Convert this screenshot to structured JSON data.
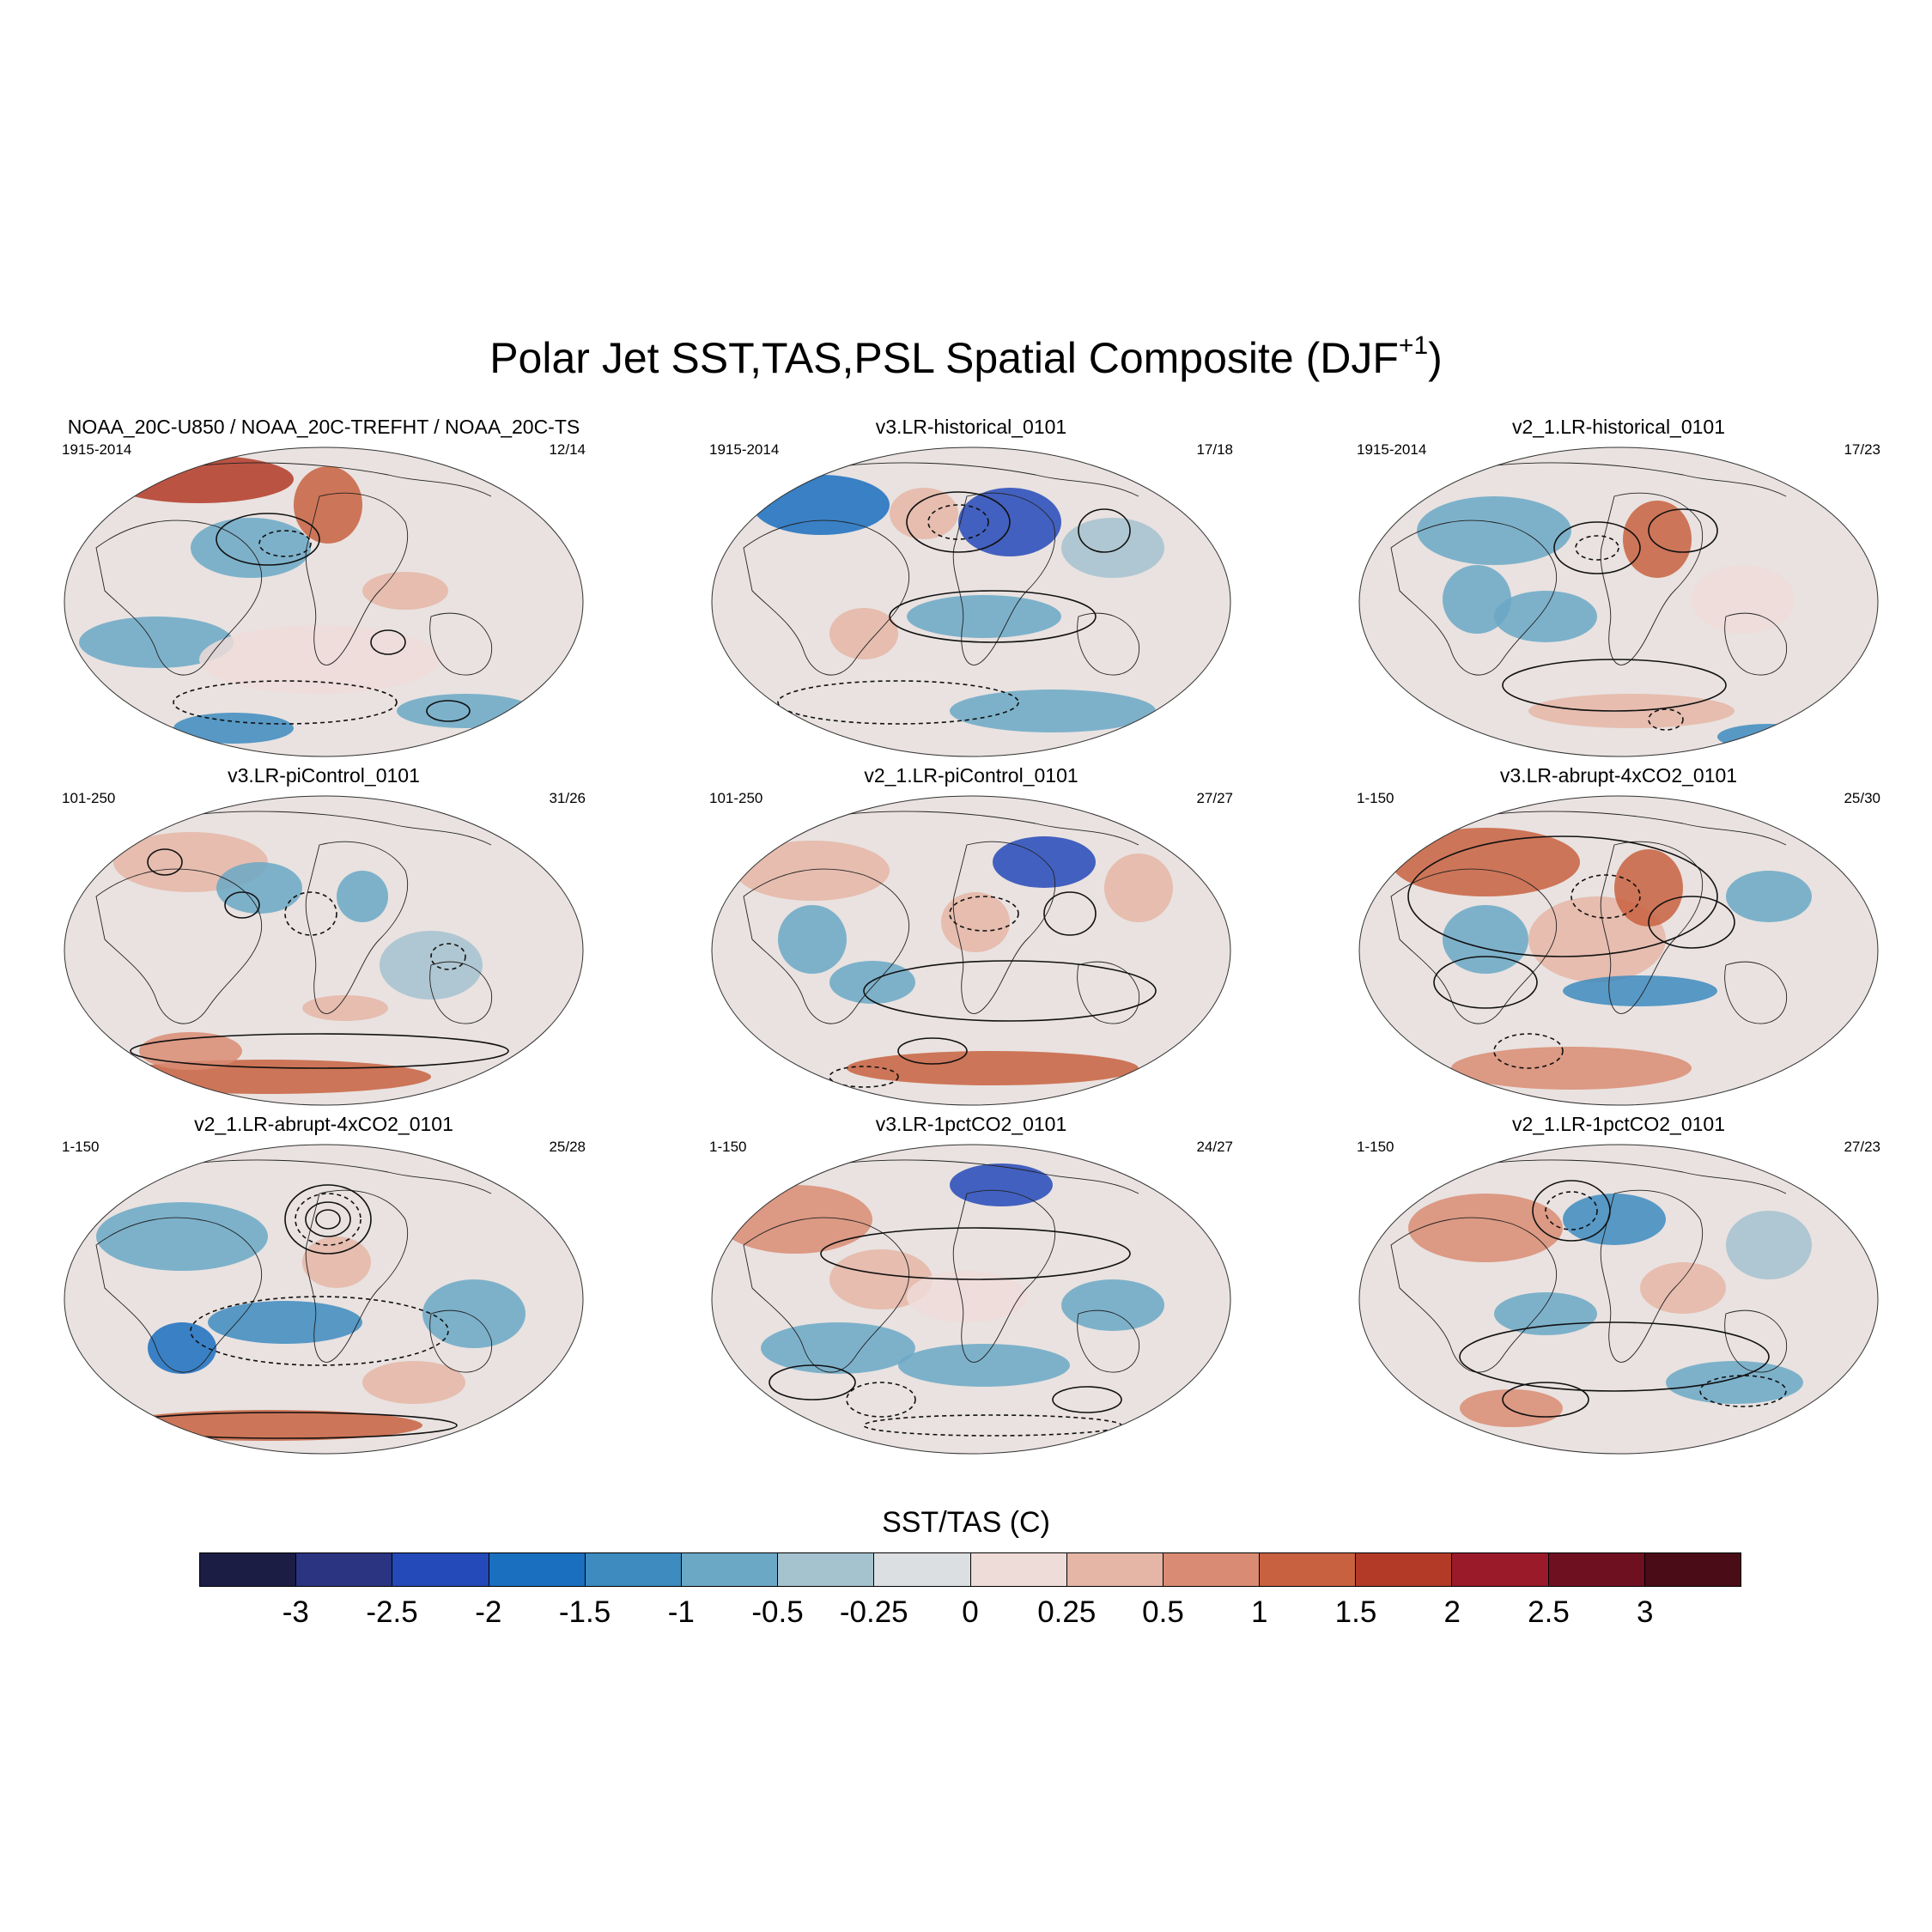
{
  "title": {
    "text": "Polar Jet SST,TAS,PSL Spatial Composite (DJF",
    "superscript": "+1",
    "closing": ")"
  },
  "panels": [
    {
      "title": "NOAA_20C-U850 / NOAA_20C-TREFHT / NOAA_20C-TS",
      "period": "1915-2014",
      "count": "12/14"
    },
    {
      "title": "v3.LR-historical_0101",
      "period": "1915-2014",
      "count": "17/18"
    },
    {
      "title": "v2_1.LR-historical_0101",
      "period": "1915-2014",
      "count": "17/23"
    },
    {
      "title": "v3.LR-piControl_0101",
      "period": "101-250",
      "count": "31/26"
    },
    {
      "title": "v2_1.LR-piControl_0101",
      "period": "101-250",
      "count": "27/27"
    },
    {
      "title": "v3.LR-abrupt-4xCO2_0101",
      "period": "1-150",
      "count": "25/30"
    },
    {
      "title": "v2_1.LR-abrupt-4xCO2_0101",
      "period": "1-150",
      "count": "25/28"
    },
    {
      "title": "v3.LR-1pctCO2_0101",
      "period": "1-150",
      "count": "24/27"
    },
    {
      "title": "v2_1.LR-1pctCO2_0101",
      "period": "1-150",
      "count": "27/23"
    }
  ],
  "colorbar": {
    "title": "SST/TAS (C)",
    "labels": [
      "-3",
      "-2.5",
      "-2",
      "-1.5",
      "-1",
      "-0.5",
      "-0.25",
      "0",
      "0.25",
      "0.5",
      "1",
      "1.5",
      "2",
      "2.5",
      "3"
    ],
    "colors": [
      "#1b1d45",
      "#2a3480",
      "#2449b8",
      "#1a6fbf",
      "#3d8bbf",
      "#6aa8c5",
      "#a5c2cf",
      "#dcdfe1",
      "#eedcd8",
      "#e5b6a6",
      "#d98c73",
      "#c8613f",
      "#b33a27",
      "#9a1a29",
      "#6f1021",
      "#4a0c16"
    ]
  }
}
